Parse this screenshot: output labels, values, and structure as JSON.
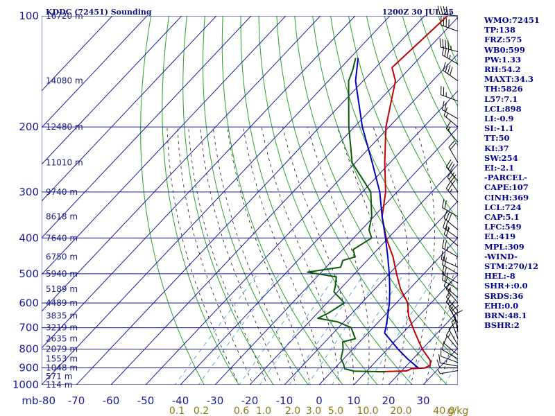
{
  "header": {
    "station": "KDDC (72451) Sounding",
    "time": "1200Z 30 JUL 25"
  },
  "indices": [
    "WMO:72451",
    "TP:138",
    "FRZ:575",
    "WB0:599",
    "PW:1.33",
    "RH:54.2",
    "MAXT:34.3",
    "TH:5826",
    "L57:7.1",
    "LCL:898",
    "LI:-0.9",
    "SI:-1.1",
    "TT:50",
    "KI:37",
    "SW:254",
    "EI:-2.1",
    "-PARCEL-",
    "CAPE:107",
    "CINH:369",
    "LCL:724",
    "CAP:5.1",
    "LFC:549",
    "EL:419",
    "MPL:309",
    "-WIND-",
    "STM:270/12",
    "HEL:-8",
    "SHR+:0.0",
    "SRDS:36",
    "EHI:0.0",
    "BRN:48.1",
    "BSHR:2"
  ],
  "colors": {
    "isobar": "#1a1aa0",
    "isotherm": "#1a1aa0",
    "dry_adiabat": "#2aa02a",
    "moist_adiabat": "#1a1a1a",
    "mixing_ratio": "#4aa0d0",
    "temperature": "#c00000",
    "dewpoint": "#0a5a0a",
    "parcel": "#0000c0",
    "wind_barb": "#000000"
  },
  "chart_data": {
    "type": "skew-t log-p",
    "title": "KDDC (72451) Sounding",
    "subtitle": "1200Z 30 JUL 25",
    "y_axis": {
      "unit": "mb",
      "scale": "log",
      "range": [
        1000,
        100
      ],
      "ticks": [
        100,
        200,
        300,
        400,
        500,
        600,
        700,
        800,
        900,
        1000
      ]
    },
    "x_axis": {
      "range": [
        -80,
        30
      ],
      "ticks": [
        -80,
        -70,
        -60,
        -50,
        -40,
        -30,
        -20,
        -10,
        0,
        10,
        20,
        30
      ],
      "tick_labels": [
        "mb-80",
        "-70",
        "-60",
        "-50",
        "-40",
        "-30",
        "-20",
        "-10",
        "0",
        "10",
        "20",
        "30"
      ]
    },
    "mixing_ratio_labels": [
      "0.1",
      "0.2",
      "0.6",
      "1.0",
      "2.0",
      "3.0",
      "5.0",
      "10.0",
      "20.0",
      "40.0",
      "g/kg"
    ],
    "height_labels": [
      {
        "p": 100,
        "label": "16720 m"
      },
      {
        "p": 150,
        "label": "14080 m"
      },
      {
        "p": 200,
        "label": "12480 m"
      },
      {
        "p": 250,
        "label": "11010 m"
      },
      {
        "p": 300,
        "label": "9740 m"
      },
      {
        "p": 350,
        "label": "8618 m"
      },
      {
        "p": 400,
        "label": "7640 m"
      },
      {
        "p": 450,
        "label": "6750 m"
      },
      {
        "p": 500,
        "label": "5940 m"
      },
      {
        "p": 550,
        "label": "5189 m"
      },
      {
        "p": 600,
        "label": "4489 m"
      },
      {
        "p": 650,
        "label": "3835 m"
      },
      {
        "p": 700,
        "label": "3219 m"
      },
      {
        "p": 750,
        "label": "2635 m"
      },
      {
        "p": 800,
        "label": "2079 m"
      },
      {
        "p": 850,
        "label": "1553 m"
      },
      {
        "p": 900,
        "label": "1048 m"
      },
      {
        "p": 950,
        "label": "571 m"
      },
      {
        "p": 1000,
        "label": "114 m"
      }
    ],
    "series": [
      {
        "name": "temperature",
        "points": [
          [
            922,
            12.8
          ],
          [
            917,
            21.4
          ],
          [
            912,
            21.8
          ],
          [
            904,
            22.1
          ],
          [
            900,
            25.9
          ],
          [
            885,
            26.7
          ],
          [
            860,
            25.5
          ],
          [
            800,
            20.0
          ],
          [
            740,
            15.0
          ],
          [
            700,
            11.5
          ],
          [
            650,
            7.0
          ],
          [
            600,
            3.3
          ],
          [
            550,
            -2.6
          ],
          [
            500,
            -7.9
          ],
          [
            450,
            -13.5
          ],
          [
            400,
            -20.6
          ],
          [
            350,
            -27.6
          ],
          [
            300,
            -33.3
          ],
          [
            250,
            -41.5
          ],
          [
            200,
            -50.9
          ],
          [
            150,
            -60.7
          ],
          [
            138,
            -65.3
          ],
          [
            100,
            -63.4
          ]
        ]
      },
      {
        "name": "dewpoint",
        "points": [
          [
            922,
            15.5
          ],
          [
            918,
            6.3
          ],
          [
            905,
            3.0
          ],
          [
            880,
            1.5
          ],
          [
            850,
            -0.8
          ],
          [
            800,
            -2.8
          ],
          [
            765,
            -4.9
          ],
          [
            750,
            -2.1
          ],
          [
            700,
            -6.3
          ],
          [
            675,
            -11.8
          ],
          [
            660,
            -18.5
          ],
          [
            640,
            -16.9
          ],
          [
            600,
            -15.0
          ],
          [
            560,
            -21.0
          ],
          [
            540,
            -22.2
          ],
          [
            510,
            -24.4
          ],
          [
            495,
            -34.0
          ],
          [
            480,
            -25.8
          ],
          [
            460,
            -27.0
          ],
          [
            450,
            -24.4
          ],
          [
            430,
            -27.0
          ],
          [
            400,
            -24.8
          ],
          [
            380,
            -27.8
          ],
          [
            350,
            -30.6
          ],
          [
            300,
            -37.6
          ],
          [
            250,
            -50.9
          ],
          [
            200,
            -61.6
          ],
          [
            150,
            -74.2
          ],
          [
            140,
            -76.0
          ],
          [
            130,
            -78.4
          ]
        ]
      },
      {
        "name": "parcel",
        "points": [
          [
            900,
            24.0
          ],
          [
            850,
            18.4
          ],
          [
            800,
            13.0
          ],
          [
            724,
            4.8
          ],
          [
            700,
            3.7
          ],
          [
            650,
            1.0
          ],
          [
            600,
            -2.0
          ],
          [
            550,
            -5.7
          ],
          [
            500,
            -10.0
          ],
          [
            450,
            -15.0
          ],
          [
            400,
            -20.8
          ],
          [
            350,
            -27.6
          ],
          [
            300,
            -35.0
          ],
          [
            250,
            -45.1
          ],
          [
            200,
            -57.7
          ],
          [
            150,
            -72.2
          ],
          [
            130,
            -77.7
          ]
        ]
      }
    ],
    "wind_barbs": [
      {
        "p": 100,
        "dir": 275,
        "spd": 45
      },
      {
        "p": 110,
        "dir": 290,
        "spd": 40
      },
      {
        "p": 125,
        "dir": 285,
        "spd": 45
      },
      {
        "p": 135,
        "dir": 300,
        "spd": 35
      },
      {
        "p": 150,
        "dir": 305,
        "spd": 40
      },
      {
        "p": 170,
        "dir": 290,
        "spd": 25
      },
      {
        "p": 190,
        "dir": 300,
        "spd": 20
      },
      {
        "p": 200,
        "dir": 310,
        "spd": 15
      },
      {
        "p": 220,
        "dir": 320,
        "spd": 15
      },
      {
        "p": 250,
        "dir": 330,
        "spd": 20
      },
      {
        "p": 280,
        "dir": 320,
        "spd": 30
      },
      {
        "p": 300,
        "dir": 325,
        "spd": 35
      },
      {
        "p": 320,
        "dir": 320,
        "spd": 25
      },
      {
        "p": 350,
        "dir": 300,
        "spd": 20
      },
      {
        "p": 380,
        "dir": 310,
        "spd": 30
      },
      {
        "p": 400,
        "dir": 305,
        "spd": 25
      },
      {
        "p": 420,
        "dir": 310,
        "spd": 20
      },
      {
        "p": 450,
        "dir": 300,
        "spd": 25
      },
      {
        "p": 480,
        "dir": 295,
        "spd": 20
      },
      {
        "p": 500,
        "dir": 300,
        "spd": 20
      },
      {
        "p": 530,
        "dir": 300,
        "spd": 25
      },
      {
        "p": 550,
        "dir": 300,
        "spd": 15
      },
      {
        "p": 580,
        "dir": 310,
        "spd": 10
      },
      {
        "p": 600,
        "dir": 320,
        "spd": 15
      },
      {
        "p": 630,
        "dir": 320,
        "spd": 10
      },
      {
        "p": 650,
        "dir": 320,
        "spd": 15
      },
      {
        "p": 680,
        "dir": 330,
        "spd": 15
      },
      {
        "p": 700,
        "dir": 340,
        "spd": 10
      },
      {
        "p": 720,
        "dir": 350,
        "spd": 10
      },
      {
        "p": 750,
        "dir": 340,
        "spd": 5
      },
      {
        "p": 780,
        "dir": 330,
        "spd": 10
      },
      {
        "p": 800,
        "dir": 320,
        "spd": 15
      },
      {
        "p": 830,
        "dir": 310,
        "spd": 10
      },
      {
        "p": 850,
        "dir": 300,
        "spd": 10
      },
      {
        "p": 870,
        "dir": 290,
        "spd": 10
      },
      {
        "p": 890,
        "dir": 280,
        "spd": 10
      },
      {
        "p": 900,
        "dir": 270,
        "spd": 10
      },
      {
        "p": 915,
        "dir": 260,
        "spd": 5
      }
    ]
  }
}
